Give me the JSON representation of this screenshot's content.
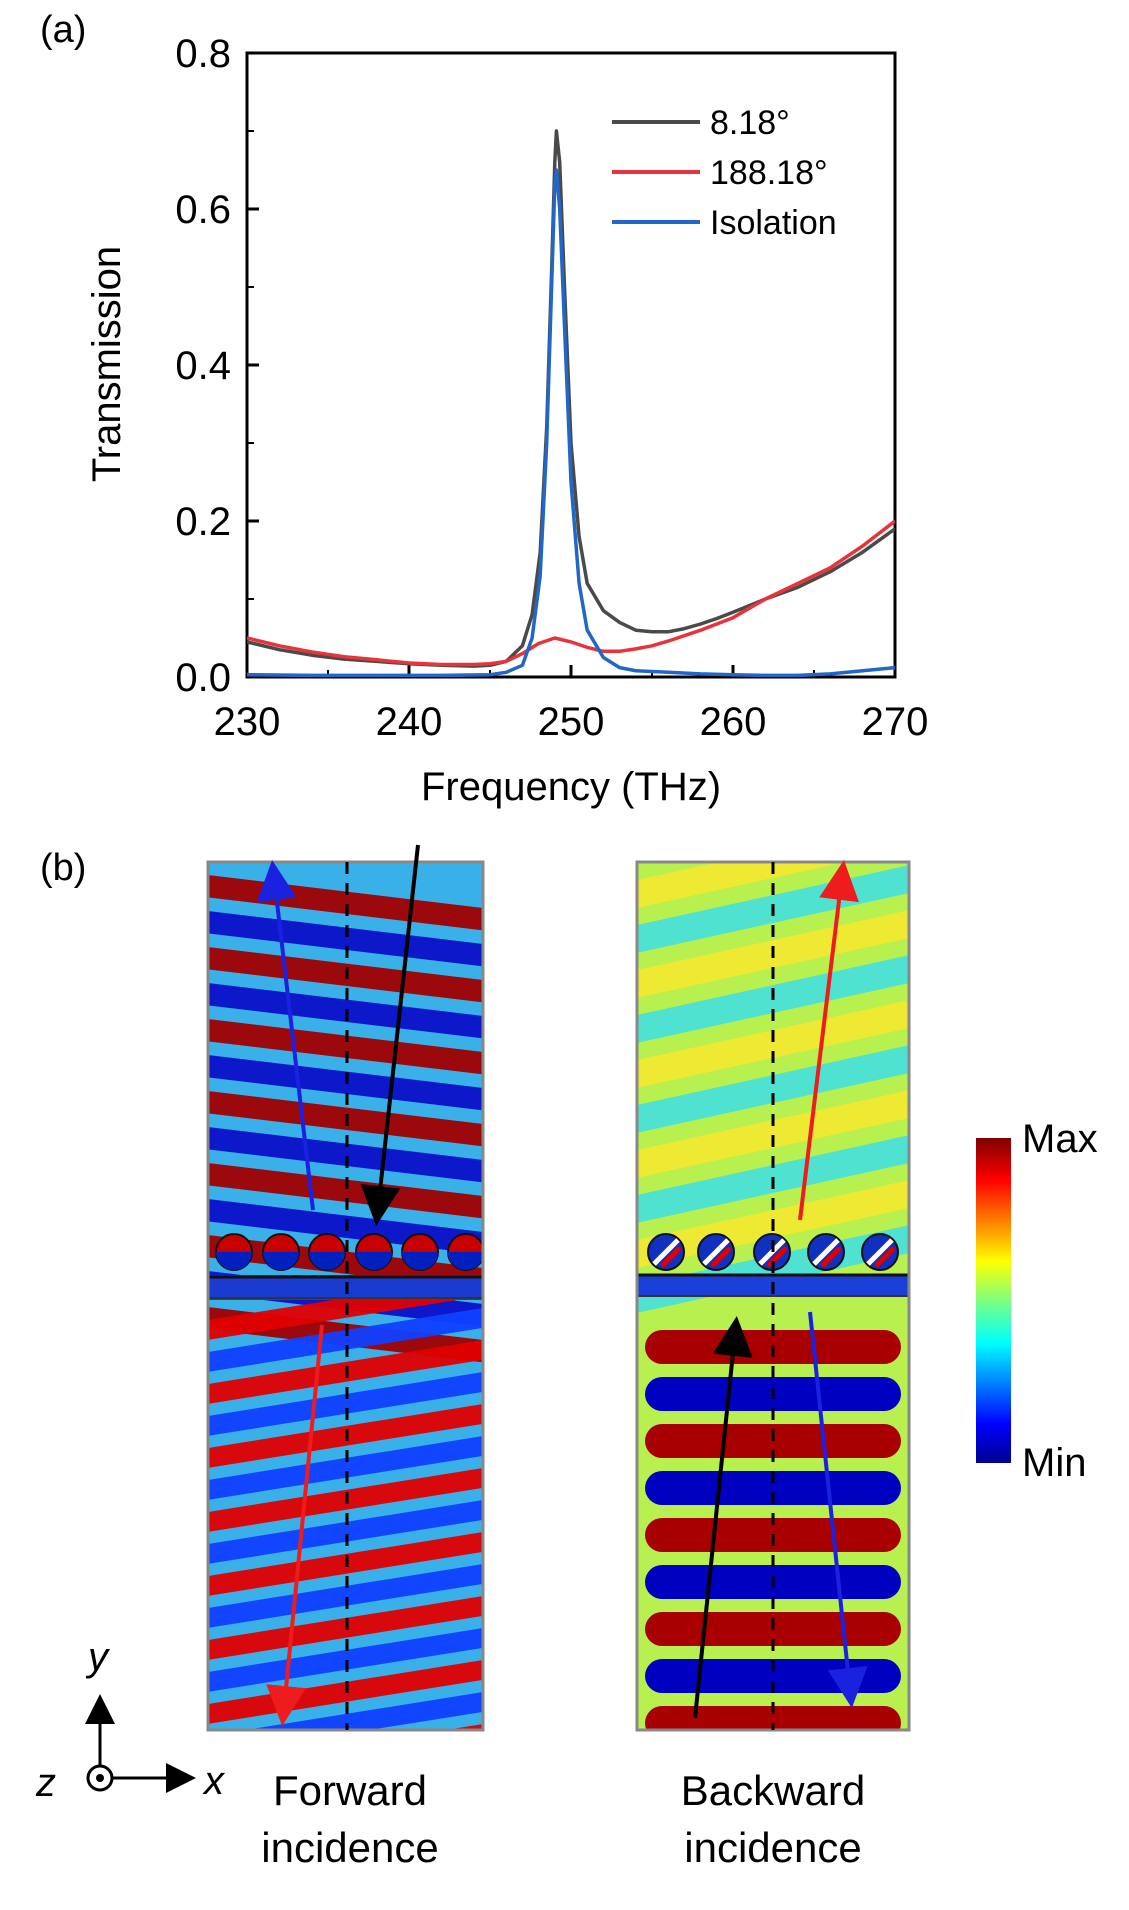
{
  "panel_a": {
    "label": "(a)",
    "chart_data": {
      "type": "line",
      "xlabel": "Frequency (THz)",
      "ylabel": "Transmission",
      "xlim": [
        230,
        270
      ],
      "ylim": [
        0,
        0.8
      ],
      "xticks": [
        230,
        240,
        250,
        260,
        270
      ],
      "yticks": [
        "0.0",
        "0.2",
        "0.4",
        "0.6",
        "0.8"
      ],
      "legend_position": "top-right",
      "grid": false,
      "series": [
        {
          "name": "8.18°",
          "color": "#4a4a4a",
          "points": [
            [
              230,
              0.045
            ],
            [
              232,
              0.035
            ],
            [
              234,
              0.028
            ],
            [
              236,
              0.023
            ],
            [
              238,
              0.02
            ],
            [
              240,
              0.017
            ],
            [
              242,
              0.015
            ],
            [
              244,
              0.014
            ],
            [
              245,
              0.015
            ],
            [
              246,
              0.02
            ],
            [
              247,
              0.04
            ],
            [
              247.6,
              0.08
            ],
            [
              248.1,
              0.16
            ],
            [
              248.5,
              0.32
            ],
            [
              248.8,
              0.52
            ],
            [
              249.0,
              0.66
            ],
            [
              249.1,
              0.7
            ],
            [
              249.3,
              0.66
            ],
            [
              249.6,
              0.5
            ],
            [
              250.0,
              0.3
            ],
            [
              250.5,
              0.18
            ],
            [
              251,
              0.12
            ],
            [
              252,
              0.085
            ],
            [
              253,
              0.07
            ],
            [
              254,
              0.06
            ],
            [
              255,
              0.058
            ],
            [
              256,
              0.058
            ],
            [
              257,
              0.062
            ],
            [
              258,
              0.068
            ],
            [
              259,
              0.075
            ],
            [
              260,
              0.083
            ],
            [
              262,
              0.1
            ],
            [
              264,
              0.115
            ],
            [
              266,
              0.135
            ],
            [
              268,
              0.16
            ],
            [
              270,
              0.19
            ]
          ]
        },
        {
          "name": "188.18°",
          "color": "#e8333a",
          "points": [
            [
              230,
              0.05
            ],
            [
              232,
              0.04
            ],
            [
              234,
              0.032
            ],
            [
              236,
              0.026
            ],
            [
              238,
              0.022
            ],
            [
              240,
              0.018
            ],
            [
              242,
              0.016
            ],
            [
              244,
              0.016
            ],
            [
              245,
              0.017
            ],
            [
              246,
              0.02
            ],
            [
              247,
              0.03
            ],
            [
              248,
              0.043
            ],
            [
              249,
              0.05
            ],
            [
              250,
              0.045
            ],
            [
              251,
              0.038
            ],
            [
              252,
              0.033
            ],
            [
              253,
              0.033
            ],
            [
              254,
              0.036
            ],
            [
              255,
              0.04
            ],
            [
              256,
              0.046
            ],
            [
              258,
              0.06
            ],
            [
              260,
              0.076
            ],
            [
              262,
              0.1
            ],
            [
              264,
              0.12
            ],
            [
              266,
              0.14
            ],
            [
              268,
              0.168
            ],
            [
              270,
              0.2
            ]
          ]
        },
        {
          "name": "Isolation",
          "color": "#2067c9",
          "points": [
            [
              230,
              0.003
            ],
            [
              234,
              0.002
            ],
            [
              238,
              0.002
            ],
            [
              242,
              0.002
            ],
            [
              245,
              0.003
            ],
            [
              246,
              0.006
            ],
            [
              247,
              0.015
            ],
            [
              247.6,
              0.05
            ],
            [
              248.1,
              0.13
            ],
            [
              248.5,
              0.3
            ],
            [
              248.8,
              0.5
            ],
            [
              249.0,
              0.63
            ],
            [
              249.1,
              0.65
            ],
            [
              249.3,
              0.6
            ],
            [
              249.6,
              0.45
            ],
            [
              250.0,
              0.25
            ],
            [
              250.5,
              0.12
            ],
            [
              251,
              0.06
            ],
            [
              252,
              0.025
            ],
            [
              253,
              0.012
            ],
            [
              254,
              0.008
            ],
            [
              256,
              0.006
            ],
            [
              258,
              0.004
            ],
            [
              260,
              0.003
            ],
            [
              262,
              0.002
            ],
            [
              264,
              0.002
            ],
            [
              266,
              0.004
            ],
            [
              268,
              0.008
            ],
            [
              270,
              0.012
            ]
          ]
        }
      ]
    }
  },
  "panel_b": {
    "label": "(b)",
    "forward_caption": [
      "Forward",
      "incidence"
    ],
    "backward_caption": [
      "Backward",
      "incidence"
    ],
    "colorbar": {
      "max_label": "Max",
      "min_label": "Min"
    },
    "axes": {
      "y": "y",
      "x": "x",
      "z": "z"
    },
    "arrow_colors": {
      "incident": "#000000",
      "reflected": "#1a22e0",
      "transmitted": "#ee1c1c"
    }
  }
}
